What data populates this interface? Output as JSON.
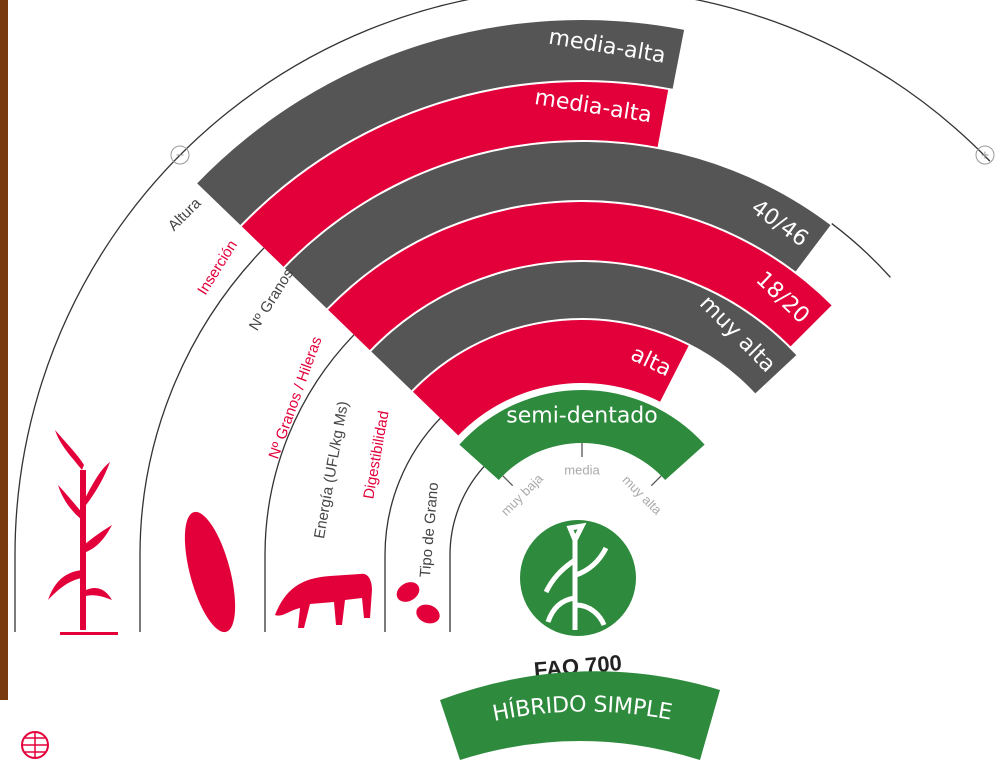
{
  "scale_symbols": {
    "min": "−",
    "max": "+"
  },
  "rings": [
    {
      "label": "Altura",
      "value": "media-alta",
      "color": "#555555"
    },
    {
      "label": "Inserción",
      "value": "media-alta",
      "color": "#e3003a"
    },
    {
      "label": "Nº Granos",
      "value": "40/46",
      "color": "#555555"
    },
    {
      "label": "Nº Granos / Hileras",
      "value": "18/20",
      "color": "#e3003a"
    },
    {
      "label": "Energía (UFL/kg Ms)",
      "value": "muy alta",
      "color": "#555555"
    },
    {
      "label": "Digestibilidad",
      "value": "alta",
      "color": "#e3003a"
    },
    {
      "label": "Tipo de Grano",
      "value": "semi-dentado",
      "color": "#2e8b3e"
    }
  ],
  "scale": {
    "low": "muy baja",
    "mid": "media",
    "high": "muy alta"
  },
  "product": {
    "fao": "FAO 700",
    "type": "HÍBRIDO SIMPLE"
  }
}
